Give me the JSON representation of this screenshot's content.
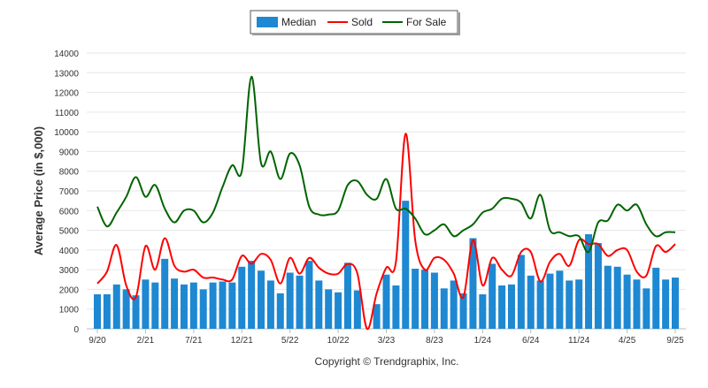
{
  "chart_data": {
    "type": "bar",
    "title": "",
    "xlabel": "",
    "ylabel": "Average Price (in $,000)",
    "ylim": [
      0,
      14000
    ],
    "yticks": [
      "0",
      "1000",
      "2000",
      "3000",
      "4000",
      "5000",
      "6000",
      "7000",
      "8000",
      "9000",
      "10000",
      "11000",
      "12000",
      "13000",
      "14000"
    ],
    "xtick_labels": [
      "9/20",
      "2/21",
      "7/21",
      "12/21",
      "5/22",
      "10/22",
      "3/23",
      "8/23",
      "1/24",
      "6/24",
      "11/24",
      "4/25",
      "9/25"
    ],
    "xtick_every": 5,
    "months": 61,
    "grid": true,
    "legend_position": "top-center",
    "series": [
      {
        "name": "Median",
        "type": "bar",
        "color": "#1e88d2",
        "values": [
          1750,
          1750,
          2250,
          2000,
          1700,
          2500,
          2350,
          3550,
          2550,
          2250,
          2350,
          2000,
          2350,
          2400,
          2350,
          3150,
          3450,
          2950,
          2450,
          1800,
          2850,
          2700,
          3450,
          2450,
          2000,
          1850,
          3350,
          1950,
          0,
          1250,
          2750,
          2200,
          6500,
          3050,
          3000,
          2850,
          2050,
          2450,
          1800,
          4600,
          1750,
          3300,
          2200,
          2250,
          3750,
          2700,
          2450,
          2800,
          2950,
          2450,
          2500,
          4800,
          4350,
          3200,
          3150,
          2750,
          2500,
          2050,
          3100,
          2500,
          2600
        ]
      },
      {
        "name": "Sold",
        "type": "line",
        "color": "#ff0000",
        "values": [
          2300,
          2900,
          4250,
          2200,
          1600,
          4200,
          3000,
          4600,
          3200,
          2900,
          3000,
          2600,
          2600,
          2500,
          2500,
          3700,
          3300,
          3800,
          3500,
          2300,
          3600,
          2800,
          3600,
          3100,
          2800,
          2800,
          3300,
          2800,
          0,
          1800,
          3100,
          3400,
          9900,
          4500,
          3000,
          3600,
          3500,
          2800,
          1600,
          4500,
          2200,
          3600,
          3000,
          2700,
          3900,
          3900,
          2400,
          3400,
          3800,
          3200,
          4500,
          4300,
          4300,
          3700,
          4000,
          4000,
          2900,
          2700,
          4200,
          3900,
          4300
        ]
      },
      {
        "name": "For Sale",
        "type": "line",
        "color": "#006400",
        "values": [
          6200,
          5200,
          5900,
          6700,
          7700,
          6700,
          7300,
          6100,
          5400,
          6000,
          6000,
          5400,
          5900,
          7200,
          8300,
          8000,
          12800,
          8400,
          9000,
          7600,
          8900,
          8300,
          6200,
          5800,
          5800,
          6000,
          7300,
          7500,
          6800,
          6600,
          7600,
          6100,
          6100,
          5600,
          4800,
          5000,
          5300,
          4700,
          5000,
          5300,
          5900,
          6100,
          6600,
          6600,
          6400,
          5600,
          6800,
          5000,
          4900,
          4700,
          4700,
          3900,
          5400,
          5500,
          6300,
          6000,
          6300,
          5300,
          4700,
          4900,
          4900
        ]
      }
    ]
  },
  "footer": {
    "copyright": "Copyright © Trendgraphix, Inc."
  }
}
